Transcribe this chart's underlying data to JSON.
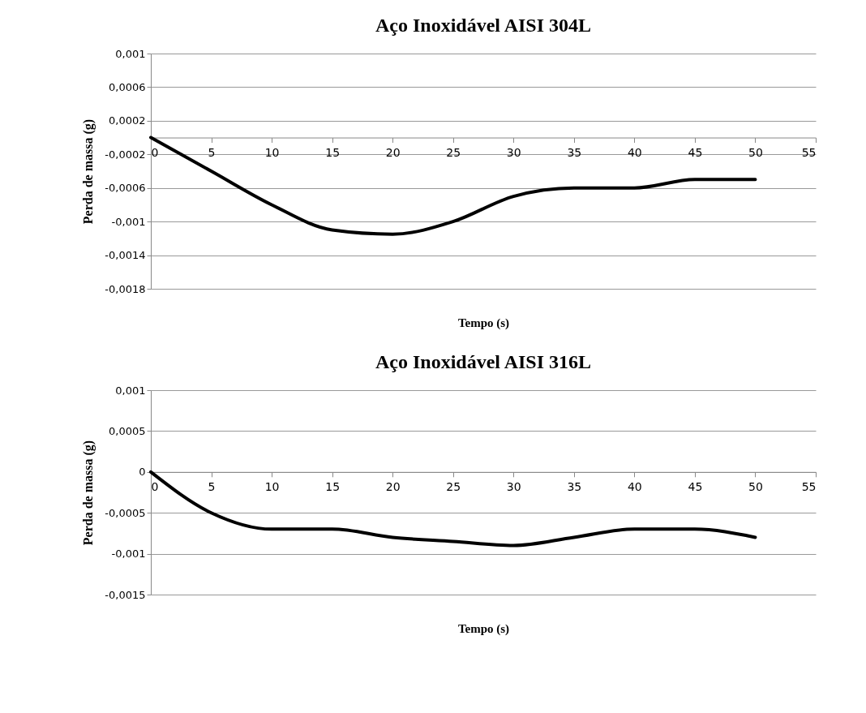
{
  "chart_data": [
    {
      "type": "line",
      "title": "Aço Inoxidável AISI 304L",
      "xlabel": "Tempo (s)",
      "ylabel": "Perda de massa (g)",
      "x": [
        0,
        5,
        10,
        15,
        20,
        25,
        30,
        35,
        40,
        45,
        50
      ],
      "series": [
        {
          "color": "#000000",
          "values": [
            0,
            -0.0004,
            -0.0008,
            -0.0011,
            -0.00115,
            -0.001,
            -0.0007,
            -0.0006,
            -0.0006,
            -0.0005,
            -0.0005
          ]
        }
      ],
      "xlim": [
        0,
        55
      ],
      "xticks": [
        0,
        5,
        10,
        15,
        20,
        25,
        30,
        35,
        40,
        45,
        50,
        55
      ],
      "ylim": [
        -0.0018,
        0.001
      ],
      "yticks": [
        {
          "value": 0.001,
          "label": "0,001"
        },
        {
          "value": 0.0006,
          "label": "0,0006"
        },
        {
          "value": 0.0002,
          "label": "0,0002"
        },
        {
          "value": -0.0002,
          "label": "-0,0002"
        },
        {
          "value": -0.0006,
          "label": "-0,0006"
        },
        {
          "value": -0.001,
          "label": "-0,001"
        },
        {
          "value": -0.0014,
          "label": "-0,0014"
        },
        {
          "value": -0.0018,
          "label": "-0,0018"
        }
      ],
      "grid": "y",
      "line_style": "solid"
    },
    {
      "type": "line",
      "title": "Aço Inoxidável AISI 316L",
      "xlabel": "Tempo (s)",
      "ylabel": "Perda de massa (g)",
      "x": [
        0,
        5,
        10,
        15,
        20,
        25,
        30,
        35,
        40,
        45,
        50
      ],
      "series": [
        {
          "color": "#000000",
          "values": [
            0,
            -0.0005,
            -0.0007,
            -0.0007,
            -0.0008,
            -0.00085,
            -0.0009,
            -0.0008,
            -0.0007,
            -0.0007,
            -0.0008
          ]
        }
      ],
      "xlim": [
        0,
        55
      ],
      "xticks": [
        0,
        5,
        10,
        15,
        20,
        25,
        30,
        35,
        40,
        45,
        50,
        55
      ],
      "ylim": [
        -0.0015,
        0.001
      ],
      "yticks": [
        {
          "value": 0.001,
          "label": "0,001"
        },
        {
          "value": 0.0005,
          "label": "0,0005"
        },
        {
          "value": 0,
          "label": "0"
        },
        {
          "value": -0.0005,
          "label": "-0,0005"
        },
        {
          "value": -0.001,
          "label": "-0,001"
        },
        {
          "value": -0.0015,
          "label": "-0,0015"
        }
      ],
      "grid": "y",
      "line_style": "solid"
    }
  ]
}
